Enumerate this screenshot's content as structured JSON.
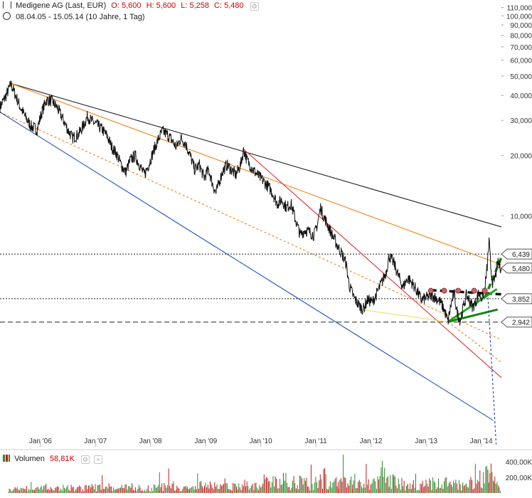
{
  "header": {
    "title": "Medigene AG (Last, EUR)",
    "open": "O: 5,600",
    "high": "H: 5,600",
    "low": "L: 5,258",
    "close": "C: 5,480",
    "range": "08.04.05 - 15.05.14 (10 Jahre, 1 Tag)"
  },
  "volume_header": {
    "label": "Volumen",
    "value": "58,81K"
  },
  "chart_data": {
    "type": "line",
    "title": "Medigene AG (Last, EUR)",
    "y_scale": "log",
    "ylim": [
      0.7,
      120
    ],
    "xlim": [
      "2005-04-08",
      "2014-05-15"
    ],
    "x_ticks": [
      {
        "date": "2006-01-01",
        "label": "Jan '06"
      },
      {
        "date": "2007-01-01",
        "label": "Jan '07"
      },
      {
        "date": "2008-01-01",
        "label": "Jan '08"
      },
      {
        "date": "2009-01-01",
        "label": "Jan '09"
      },
      {
        "date": "2010-01-01",
        "label": "Jan '10"
      },
      {
        "date": "2011-01-01",
        "label": "Jan '11"
      },
      {
        "date": "2012-01-01",
        "label": "Jan '12"
      },
      {
        "date": "2013-01-01",
        "label": "Jan '13"
      },
      {
        "date": "2014-01-01",
        "label": "Jan '14"
      }
    ],
    "y_ticks": [
      {
        "value": 110,
        "label": "110,000"
      },
      {
        "value": 100,
        "label": "100,000"
      },
      {
        "value": 90,
        "label": "90,000"
      },
      {
        "value": 80,
        "label": "80,000"
      },
      {
        "value": 70,
        "label": "70,000"
      },
      {
        "value": 60,
        "label": "60,000"
      },
      {
        "value": 50,
        "label": "50,000"
      },
      {
        "value": 40,
        "label": "40,000"
      },
      {
        "value": 30,
        "label": "30,000"
      },
      {
        "value": 20,
        "label": "20,000"
      },
      {
        "value": 10,
        "label": "10,000"
      }
    ],
    "series": [
      {
        "points": [
          [
            "2005-04-08",
            35.0
          ],
          [
            "2005-05-15",
            39.5
          ],
          [
            "2005-06-20",
            45.5
          ],
          [
            "2005-07-20",
            40.0
          ],
          [
            "2005-08-20",
            35.0
          ],
          [
            "2005-09-25",
            31.0
          ],
          [
            "2005-11-01",
            28.0
          ],
          [
            "2005-12-10",
            27.0
          ],
          [
            "2006-01-10",
            33.0
          ],
          [
            "2006-02-10",
            38.0
          ],
          [
            "2006-03-15",
            37.5
          ],
          [
            "2006-04-20",
            35.0
          ],
          [
            "2006-05-25",
            31.0
          ],
          [
            "2006-07-01",
            27.0
          ],
          [
            "2006-08-01",
            24.5
          ],
          [
            "2006-09-10",
            25.5
          ],
          [
            "2006-10-10",
            28.0
          ],
          [
            "2006-11-10",
            31.5
          ],
          [
            "2006-12-01",
            30.0
          ],
          [
            "2007-01-10",
            28.5
          ],
          [
            "2007-02-15",
            27.0
          ],
          [
            "2007-03-20",
            25.0
          ],
          [
            "2007-04-20",
            22.0
          ],
          [
            "2007-05-20",
            20.5
          ],
          [
            "2007-06-20",
            18.0
          ],
          [
            "2007-07-20",
            16.5
          ],
          [
            "2007-08-20",
            19.0
          ],
          [
            "2007-09-20",
            20.0
          ],
          [
            "2007-10-20",
            18.0
          ],
          [
            "2007-11-20",
            16.0
          ],
          [
            "2007-12-20",
            18.0
          ],
          [
            "2008-01-20",
            21.0
          ],
          [
            "2008-02-20",
            24.0
          ],
          [
            "2008-03-20",
            26.5
          ],
          [
            "2008-04-20",
            25.5
          ],
          [
            "2008-05-20",
            24.0
          ],
          [
            "2008-06-20",
            22.0
          ],
          [
            "2008-07-20",
            24.5
          ],
          [
            "2008-08-20",
            23.0
          ],
          [
            "2008-09-20",
            20.0
          ],
          [
            "2008-10-20",
            17.0
          ],
          [
            "2008-11-20",
            18.0
          ],
          [
            "2008-12-20",
            15.5
          ],
          [
            "2009-01-20",
            17.0
          ],
          [
            "2009-02-20",
            14.0
          ],
          [
            "2009-03-10",
            13.0
          ],
          [
            "2009-04-20",
            16.5
          ],
          [
            "2009-05-20",
            18.0
          ],
          [
            "2009-06-20",
            17.0
          ],
          [
            "2009-07-20",
            16.0
          ],
          [
            "2009-08-20",
            18.0
          ],
          [
            "2009-09-10",
            21.5
          ],
          [
            "2009-10-01",
            19.0
          ],
          [
            "2009-11-10",
            17.0
          ],
          [
            "2009-12-10",
            16.0
          ],
          [
            "2010-01-15",
            15.0
          ],
          [
            "2010-02-20",
            14.0
          ],
          [
            "2010-03-20",
            13.0
          ],
          [
            "2010-04-20",
            11.5
          ],
          [
            "2010-05-20",
            12.0
          ],
          [
            "2010-06-20",
            11.0
          ],
          [
            "2010-07-20",
            11.5
          ],
          [
            "2010-08-20",
            9.5
          ],
          [
            "2010-09-20",
            8.0
          ],
          [
            "2010-10-20",
            8.5
          ],
          [
            "2010-11-20",
            8.3
          ],
          [
            "2010-12-20",
            8.0
          ],
          [
            "2011-01-10",
            9.0
          ],
          [
            "2011-02-01",
            11.0
          ],
          [
            "2011-02-20",
            10.0
          ],
          [
            "2011-03-20",
            9.0
          ],
          [
            "2011-04-20",
            8.0
          ],
          [
            "2011-05-20",
            7.2
          ],
          [
            "2011-06-20",
            6.5
          ],
          [
            "2011-07-20",
            5.8
          ],
          [
            "2011-08-10",
            4.5
          ],
          [
            "2011-09-10",
            3.9
          ],
          [
            "2011-10-10",
            3.6
          ],
          [
            "2011-11-10",
            3.4
          ],
          [
            "2011-12-10",
            3.8
          ],
          [
            "2012-01-10",
            3.7
          ],
          [
            "2012-02-10",
            4.1
          ],
          [
            "2012-03-10",
            4.6
          ],
          [
            "2012-04-10",
            5.2
          ],
          [
            "2012-05-01",
            6.3
          ],
          [
            "2012-06-01",
            5.8
          ],
          [
            "2012-07-01",
            5.0
          ],
          [
            "2012-08-01",
            4.4
          ],
          [
            "2012-09-01",
            4.9
          ],
          [
            "2012-10-01",
            4.6
          ],
          [
            "2012-11-01",
            4.2
          ],
          [
            "2012-12-01",
            3.8
          ],
          [
            "2013-01-05",
            3.9
          ],
          [
            "2013-02-05",
            4.0
          ],
          [
            "2013-03-05",
            3.9
          ],
          [
            "2013-04-05",
            3.7
          ],
          [
            "2013-05-01",
            3.4
          ],
          [
            "2013-05-25",
            2.95
          ],
          [
            "2013-06-15",
            3.6
          ],
          [
            "2013-07-05",
            4.1
          ],
          [
            "2013-07-25",
            3.3
          ],
          [
            "2013-08-15",
            3.0
          ],
          [
            "2013-09-05",
            3.5
          ],
          [
            "2013-09-25",
            4.0
          ],
          [
            "2013-10-15",
            3.8
          ],
          [
            "2013-11-05",
            3.5
          ],
          [
            "2013-11-25",
            3.7
          ],
          [
            "2013-12-15",
            4.1
          ],
          [
            "2014-01-05",
            3.9
          ],
          [
            "2014-01-25",
            4.3
          ],
          [
            "2014-02-10",
            5.6
          ],
          [
            "2014-02-22",
            7.5
          ],
          [
            "2014-03-05",
            5.6
          ],
          [
            "2014-03-20",
            4.5
          ],
          [
            "2014-04-05",
            5.0
          ],
          [
            "2014-04-20",
            5.8
          ],
          [
            "2014-05-15",
            5.48
          ]
        ]
      }
    ],
    "horizontal_levels": [
      {
        "value": 6.439,
        "label": "6,439",
        "style": "dotted",
        "color": "#222222"
      },
      {
        "value": 5.48,
        "label": "5,480",
        "style": "marker",
        "color": "#222222"
      },
      {
        "value": 3.852,
        "label": "3,852",
        "style": "dotted",
        "color": "#222222"
      },
      {
        "value": 2.942,
        "label": "2,942",
        "style": "dashed",
        "color": "#222222"
      }
    ],
    "trendlines": [
      {
        "from": [
          "2005-06-15",
          46.0
        ],
        "to": [
          "2014-05-15",
          8.8
        ],
        "color": "#222222",
        "style": "solid"
      },
      {
        "from": [
          "2005-06-15",
          46.0
        ],
        "to": [
          "2014-05-15",
          5.7
        ],
        "color": "#f08a24",
        "style": "solid"
      },
      {
        "from": [
          "2005-04-08",
          33.0
        ],
        "to": [
          "2014-05-15",
          2.4
        ],
        "color": "#f08a24",
        "style": "dotted"
      },
      {
        "from": [
          "2005-04-08",
          33.0
        ],
        "to": [
          "2014-03-20",
          0.95
        ],
        "color": "#2255cc",
        "style": "solid"
      },
      {
        "from": [
          "2009-09-10",
          21.5
        ],
        "to": [
          "2014-05-15",
          1.55
        ],
        "color": "#e03030",
        "style": "solid"
      },
      {
        "from": [
          "2011-10-20",
          3.4
        ],
        "to": [
          "2013-05-25",
          2.95
        ],
        "color": "#f0e060",
        "style": "solid"
      },
      {
        "from": [
          "2013-05-25",
          2.95
        ],
        "to": [
          "2014-05-15",
          1.85
        ],
        "color": "#f08a24",
        "style": "dotted"
      },
      {
        "from": [
          "2013-02-01",
          4.25
        ],
        "to": [
          "2014-05-15",
          4.05
        ],
        "color": "#111111",
        "style": "thick-dashed"
      },
      {
        "from": [
          "2013-05-25",
          2.95
        ],
        "to": [
          "2014-04-15",
          4.3
        ],
        "color": "#22aa22",
        "style": "thick"
      },
      {
        "from": [
          "2013-05-25",
          2.95
        ],
        "to": [
          "2014-04-20",
          3.4
        ],
        "color": "#118811",
        "style": "thick"
      },
      {
        "from": [
          "2014-01-25",
          3.9
        ],
        "to": [
          "2014-05-15",
          6.2
        ],
        "color": "#118811",
        "style": "thick-dashed"
      },
      {
        "from": [
          "2014-02-15",
          3.9
        ],
        "to": [
          "2014-04-10",
          0.72
        ],
        "color": "#2244cc",
        "style": "dotted"
      }
    ],
    "volume": {
      "label": "Volumen",
      "current": "58,81K",
      "ylim": [
        0,
        520000
      ],
      "y_ticks": [
        {
          "value": 400000,
          "label": "400,00K"
        },
        {
          "value": 200000,
          "label": "200,00K"
        }
      ],
      "bars": [
        [
          "2005-06-01",
          60000
        ],
        [
          "2005-09-01",
          90000
        ],
        [
          "2005-12-01",
          80000
        ],
        [
          "2006-03-01",
          100000
        ],
        [
          "2006-06-01",
          120000
        ],
        [
          "2006-09-01",
          90000
        ],
        [
          "2006-12-01",
          110000
        ],
        [
          "2007-03-01",
          130000
        ],
        [
          "2007-06-01",
          100000
        ],
        [
          "2007-09-01",
          140000
        ],
        [
          "2007-12-01",
          90000
        ],
        [
          "2008-03-01",
          120000
        ],
        [
          "2008-06-01",
          150000
        ],
        [
          "2008-09-01",
          110000
        ],
        [
          "2008-12-01",
          160000
        ],
        [
          "2009-03-01",
          140000
        ],
        [
          "2009-06-01",
          120000
        ],
        [
          "2009-09-01",
          170000
        ],
        [
          "2009-12-01",
          150000
        ],
        [
          "2010-03-01",
          200000
        ],
        [
          "2010-06-01",
          260000
        ],
        [
          "2010-09-01",
          220000
        ],
        [
          "2010-12-01",
          180000
        ],
        [
          "2011-03-01",
          330000
        ],
        [
          "2011-06-01",
          200000
        ],
        [
          "2011-09-01",
          250000
        ],
        [
          "2011-12-01",
          180000
        ],
        [
          "2012-03-01",
          220000
        ],
        [
          "2012-06-01",
          240000
        ],
        [
          "2012-09-01",
          170000
        ],
        [
          "2012-12-01",
          150000
        ],
        [
          "2013-03-01",
          200000
        ],
        [
          "2013-06-01",
          230000
        ],
        [
          "2013-09-01",
          190000
        ],
        [
          "2013-12-01",
          210000
        ],
        [
          "2014-02-20",
          480000
        ],
        [
          "2014-04-01",
          240000
        ],
        [
          "2014-05-10",
          58810
        ]
      ]
    }
  }
}
